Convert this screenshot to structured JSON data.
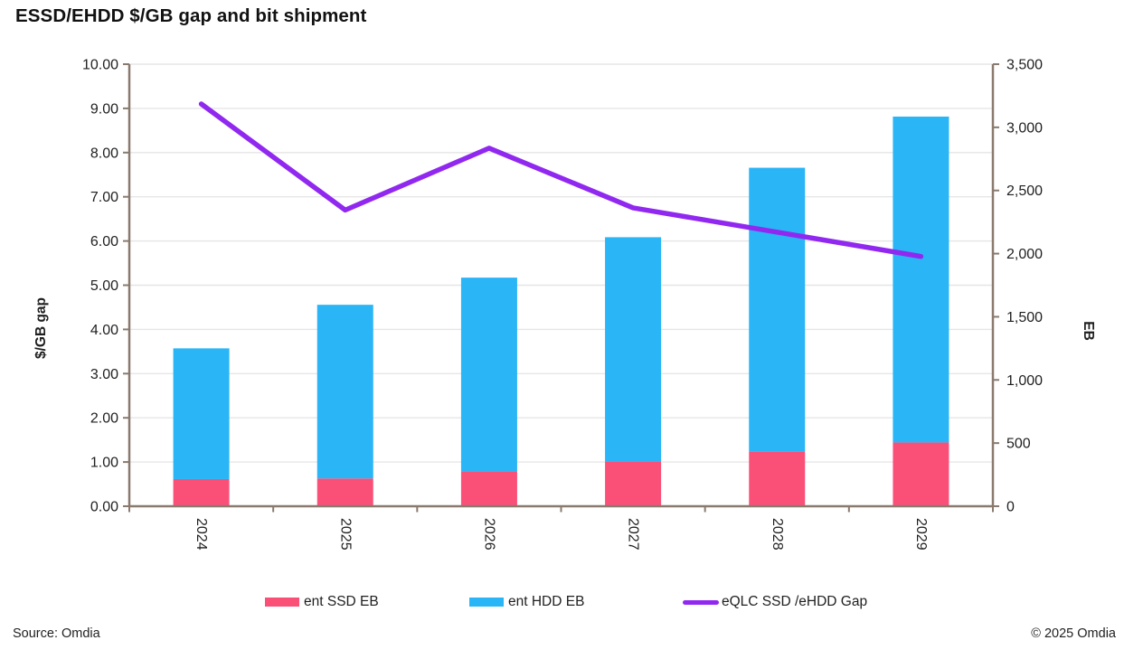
{
  "title": "ESSD/EHDD $/GB gap and bit shipment",
  "chart_data": {
    "type": "combo-stacked-bar-line",
    "categories": [
      "2024",
      "2025",
      "2026",
      "2027",
      "2028",
      "2029"
    ],
    "series": [
      {
        "name": "ent SSD EB",
        "type": "bar",
        "stacked": true,
        "axis": "right",
        "color": "#FA5078",
        "values": [
          215,
          220,
          275,
          355,
          435,
          505
        ]
      },
      {
        "name": "ent HDD EB",
        "type": "bar",
        "stacked": true,
        "axis": "right",
        "color": "#29B5F6",
        "values": [
          1035,
          1375,
          1535,
          1775,
          2245,
          2580
        ]
      },
      {
        "name": "eQLC SSD /eHDD Gap",
        "type": "line",
        "axis": "left",
        "color": "#9128F0",
        "values": [
          9.1,
          6.7,
          8.1,
          6.75,
          6.2,
          5.65
        ]
      }
    ],
    "left_axis": {
      "label": "$/GB gap",
      "min": 0,
      "max": 10,
      "step": 1,
      "ticks": [
        "10.00",
        "9.00",
        "8.00",
        "7.00",
        "6.00",
        "5.00",
        "4.00",
        "3.00",
        "2.00",
        "1.00",
        "0.00"
      ]
    },
    "right_axis": {
      "label": "EB",
      "min": 0,
      "max": 3500,
      "step": 500,
      "ticks": [
        "3,500",
        "3,000",
        "2,500",
        "2,000",
        "1,500",
        "1,000",
        "500",
        "0"
      ]
    },
    "grid": true,
    "legend_position": "bottom"
  },
  "footer": {
    "source": "Source: Omdia",
    "copyright": "© 2025 Omdia"
  },
  "colors": {
    "grid": "#E6E6E6",
    "axis": "#8A7A6E",
    "text": "#1F1F1F"
  }
}
